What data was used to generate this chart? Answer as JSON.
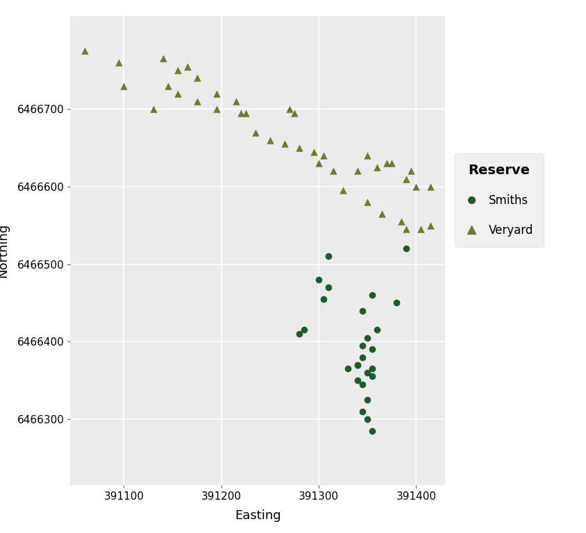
{
  "smiths_easting": [
    391310,
    391390,
    391300,
    391310,
    391305,
    391285,
    391380,
    391280,
    391350,
    391360,
    391345,
    391330,
    391340,
    391355,
    391355,
    391345,
    391350,
    391340,
    391345,
    391340,
    391350,
    391355,
    391345,
    391350,
    391355,
    391355,
    391345
  ],
  "smiths_northing": [
    6466510,
    6466520,
    6466480,
    6466470,
    6466455,
    6466415,
    6466450,
    6466410,
    6466405,
    6466415,
    6466395,
    6466365,
    6466370,
    6466365,
    6466355,
    6466345,
    6466325,
    6466350,
    6466380,
    6466370,
    6466360,
    6466390,
    6466310,
    6466300,
    6466285,
    6466460,
    6466440
  ],
  "veryard_easting": [
    391060,
    391095,
    391140,
    391155,
    391100,
    391145,
    391165,
    391175,
    391130,
    391155,
    391175,
    391195,
    391215,
    391195,
    391220,
    391225,
    391270,
    391275,
    391235,
    391250,
    391265,
    391280,
    391295,
    391305,
    391300,
    391315,
    391340,
    391360,
    391375,
    391390,
    391400,
    391415,
    391350,
    391370,
    391395,
    391415,
    391325,
    391350,
    391365,
    391385,
    391390,
    391405
  ],
  "veryard_northing": [
    6466775,
    6466760,
    6466765,
    6466750,
    6466730,
    6466730,
    6466755,
    6466740,
    6466700,
    6466720,
    6466710,
    6466720,
    6466710,
    6466700,
    6466695,
    6466695,
    6466700,
    6466695,
    6466670,
    6466660,
    6466655,
    6466650,
    6466645,
    6466640,
    6466630,
    6466620,
    6466620,
    6466625,
    6466630,
    6466610,
    6466600,
    6466550,
    6466640,
    6466630,
    6466620,
    6466600,
    6466595,
    6466580,
    6466565,
    6466555,
    6466545,
    6466545
  ],
  "smiths_color": "#1a5c2a",
  "veryard_color": "#6b7c2a",
  "bg_color": "#ebebeb",
  "panel_bg": "#ebebeb",
  "grid_color": "#ffffff",
  "xlim": [
    391045,
    391430
  ],
  "ylim": [
    6466215,
    6466820
  ],
  "xticks": [
    391100,
    391200,
    391300,
    391400
  ],
  "yticks": [
    6466300,
    6466400,
    6466500,
    6466600,
    6466700
  ],
  "xlabel": "Easting",
  "ylabel": "Northing",
  "legend_title": "Reserve",
  "legend_labels": [
    "Smiths",
    "Veryard"
  ],
  "marker_size": 40,
  "tick_labelsize": 11,
  "axis_labelsize": 13,
  "legend_fontsize": 12,
  "legend_title_fontsize": 14
}
